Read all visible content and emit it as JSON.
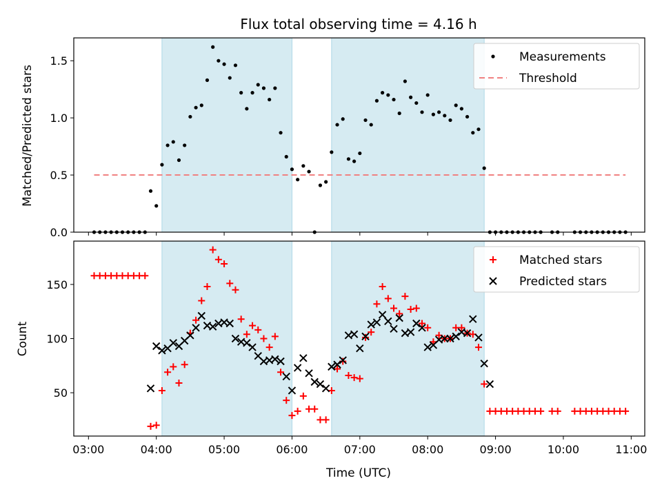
{
  "chart_data": [
    {
      "type": "scatter",
      "title": "Flux total observing time = 4.16 h",
      "xlabel": "",
      "ylabel": "Matched/Predicted stars",
      "xlim": [
        "02:47",
        "11:12"
      ],
      "ylim": [
        0,
        1.7
      ],
      "yticks": [
        0.0,
        0.5,
        1.0,
        1.5
      ],
      "ytick_labels": [
        "0.0",
        "0.5",
        "1.0",
        "1.5"
      ],
      "legend": "top-right",
      "shaded_intervals": [
        [
          "04:05",
          "06:00"
        ],
        [
          "06:35",
          "08:50"
        ]
      ],
      "series": [
        {
          "name": "Measurements",
          "marker": "dot",
          "color": "#000000",
          "points": [
            [
              "03:05",
              0
            ],
            [
              "03:10",
              0
            ],
            [
              "03:15",
              0
            ],
            [
              "03:20",
              0
            ],
            [
              "03:25",
              0
            ],
            [
              "03:30",
              0
            ],
            [
              "03:35",
              0
            ],
            [
              "03:40",
              0
            ],
            [
              "03:45",
              0
            ],
            [
              "03:50",
              0
            ],
            [
              "03:55",
              0.36
            ],
            [
              "04:00",
              0.23
            ],
            [
              "04:05",
              0.59
            ],
            [
              "04:10",
              0.76
            ],
            [
              "04:15",
              0.79
            ],
            [
              "04:20",
              0.63
            ],
            [
              "04:25",
              0.76
            ],
            [
              "04:30",
              1.01
            ],
            [
              "04:35",
              1.09
            ],
            [
              "04:40",
              1.11
            ],
            [
              "04:45",
              1.33
            ],
            [
              "04:50",
              1.62
            ],
            [
              "04:55",
              1.5
            ],
            [
              "05:00",
              1.47
            ],
            [
              "05:05",
              1.35
            ],
            [
              "05:10",
              1.46
            ],
            [
              "05:15",
              1.22
            ],
            [
              "05:20",
              1.08
            ],
            [
              "05:25",
              1.22
            ],
            [
              "05:30",
              1.29
            ],
            [
              "05:35",
              1.26
            ],
            [
              "05:40",
              1.16
            ],
            [
              "05:45",
              1.26
            ],
            [
              "05:50",
              0.87
            ],
            [
              "05:55",
              0.66
            ],
            [
              "06:00",
              0.55
            ],
            [
              "06:05",
              0.46
            ],
            [
              "06:10",
              0.58
            ],
            [
              "06:15",
              0.53
            ],
            [
              "06:20",
              0
            ],
            [
              "06:25",
              0.41
            ],
            [
              "06:30",
              0.44
            ],
            [
              "06:35",
              0.7
            ],
            [
              "06:40",
              0.94
            ],
            [
              "06:45",
              0.99
            ],
            [
              "06:50",
              0.64
            ],
            [
              "06:55",
              0.62
            ],
            [
              "07:00",
              0.69
            ],
            [
              "07:05",
              0.98
            ],
            [
              "07:10",
              0.94
            ],
            [
              "07:15",
              1.15
            ],
            [
              "07:20",
              1.22
            ],
            [
              "07:25",
              1.2
            ],
            [
              "07:30",
              1.16
            ],
            [
              "07:35",
              1.04
            ],
            [
              "07:40",
              1.32
            ],
            [
              "07:45",
              1.18
            ],
            [
              "07:50",
              1.13
            ],
            [
              "07:55",
              1.05
            ],
            [
              "08:00",
              1.2
            ],
            [
              "08:05",
              1.03
            ],
            [
              "08:10",
              1.05
            ],
            [
              "08:15",
              1.02
            ],
            [
              "08:20",
              0.98
            ],
            [
              "08:25",
              1.11
            ],
            [
              "08:30",
              1.08
            ],
            [
              "08:35",
              1.01
            ],
            [
              "08:40",
              0.87
            ],
            [
              "08:45",
              0.9
            ],
            [
              "08:50",
              0.56
            ],
            [
              "08:55",
              0
            ],
            [
              "09:00",
              0
            ],
            [
              "09:05",
              0
            ],
            [
              "09:10",
              0
            ],
            [
              "09:15",
              0
            ],
            [
              "09:20",
              0
            ],
            [
              "09:25",
              0
            ],
            [
              "09:30",
              0
            ],
            [
              "09:35",
              0
            ],
            [
              "09:40",
              0
            ],
            [
              "09:50",
              0
            ],
            [
              "09:55",
              0
            ],
            [
              "10:10",
              0
            ],
            [
              "10:15",
              0
            ],
            [
              "10:20",
              0
            ],
            [
              "10:25",
              0
            ],
            [
              "10:30",
              0
            ],
            [
              "10:35",
              0
            ],
            [
              "10:40",
              0
            ],
            [
              "10:45",
              0
            ],
            [
              "10:50",
              0
            ],
            [
              "10:55",
              0
            ]
          ]
        },
        {
          "name": "Threshold",
          "marker": "dashed-line",
          "color": "#f08080",
          "points": [
            [
              "03:05",
              0.5
            ],
            [
              "10:55",
              0.5
            ]
          ]
        }
      ]
    },
    {
      "type": "scatter",
      "title": "",
      "xlabel": "Time (UTC)",
      "ylabel": "Count",
      "xlim": [
        "02:47",
        "11:12"
      ],
      "ylim": [
        10,
        190
      ],
      "yticks": [
        50,
        100,
        150
      ],
      "ytick_labels": [
        "50",
        "100",
        "150"
      ],
      "xticks": [
        "03:00",
        "04:00",
        "05:00",
        "06:00",
        "07:00",
        "08:00",
        "09:00",
        "10:00",
        "11:00"
      ],
      "legend": "top-right",
      "shaded_intervals": [
        [
          "04:05",
          "06:00"
        ],
        [
          "06:35",
          "08:50"
        ]
      ],
      "series": [
        {
          "name": "Matched stars",
          "marker": "plus",
          "color": "#ff0000",
          "points": [
            [
              "03:05",
              158
            ],
            [
              "03:10",
              158
            ],
            [
              "03:15",
              158
            ],
            [
              "03:20",
              158
            ],
            [
              "03:25",
              158
            ],
            [
              "03:30",
              158
            ],
            [
              "03:35",
              158
            ],
            [
              "03:40",
              158
            ],
            [
              "03:45",
              158
            ],
            [
              "03:50",
              158
            ],
            [
              "03:55",
              19
            ],
            [
              "04:00",
              20
            ],
            [
              "04:05",
              52
            ],
            [
              "04:10",
              69
            ],
            [
              "04:15",
              74
            ],
            [
              "04:20",
              59
            ],
            [
              "04:25",
              76
            ],
            [
              "04:30",
              105
            ],
            [
              "04:35",
              117
            ],
            [
              "04:40",
              135
            ],
            [
              "04:45",
              148
            ],
            [
              "04:50",
              182
            ],
            [
              "04:55",
              173
            ],
            [
              "05:00",
              169
            ],
            [
              "05:05",
              151
            ],
            [
              "05:10",
              145
            ],
            [
              "05:15",
              118
            ],
            [
              "05:20",
              104
            ],
            [
              "05:25",
              112
            ],
            [
              "05:30",
              108
            ],
            [
              "05:35",
              100
            ],
            [
              "05:40",
              92
            ],
            [
              "05:45",
              102
            ],
            [
              "05:50",
              69
            ],
            [
              "05:55",
              43
            ],
            [
              "06:00",
              29
            ],
            [
              "06:05",
              33
            ],
            [
              "06:10",
              47
            ],
            [
              "06:15",
              35
            ],
            [
              "06:20",
              35
            ],
            [
              "06:25",
              25
            ],
            [
              "06:30",
              25
            ],
            [
              "06:35",
              52
            ],
            [
              "06:40",
              72
            ],
            [
              "06:45",
              79
            ],
            [
              "06:50",
              66
            ],
            [
              "06:55",
              64
            ],
            [
              "07:00",
              63
            ],
            [
              "07:05",
              101
            ],
            [
              "07:10",
              106
            ],
            [
              "07:15",
              132
            ],
            [
              "07:20",
              148
            ],
            [
              "07:25",
              137
            ],
            [
              "07:30",
              128
            ],
            [
              "07:35",
              123
            ],
            [
              "07:40",
              139
            ],
            [
              "07:45",
              127
            ],
            [
              "07:50",
              128
            ],
            [
              "07:55",
              114
            ],
            [
              "08:00",
              110
            ],
            [
              "08:05",
              97
            ],
            [
              "08:10",
              103
            ],
            [
              "08:15",
              100
            ],
            [
              "08:20",
              100
            ],
            [
              "08:25",
              110
            ],
            [
              "08:30",
              110
            ],
            [
              "08:35",
              105
            ],
            [
              "08:40",
              104
            ],
            [
              "08:45",
              92
            ],
            [
              "08:50",
              58
            ],
            [
              "08:55",
              33
            ],
            [
              "09:00",
              33
            ],
            [
              "09:05",
              33
            ],
            [
              "09:10",
              33
            ],
            [
              "09:15",
              33
            ],
            [
              "09:20",
              33
            ],
            [
              "09:25",
              33
            ],
            [
              "09:30",
              33
            ],
            [
              "09:35",
              33
            ],
            [
              "09:40",
              33
            ],
            [
              "09:50",
              33
            ],
            [
              "09:55",
              33
            ],
            [
              "10:10",
              33
            ],
            [
              "10:15",
              33
            ],
            [
              "10:20",
              33
            ],
            [
              "10:25",
              33
            ],
            [
              "10:30",
              33
            ],
            [
              "10:35",
              33
            ],
            [
              "10:40",
              33
            ],
            [
              "10:45",
              33
            ],
            [
              "10:50",
              33
            ],
            [
              "10:55",
              33
            ]
          ]
        },
        {
          "name": "Predicted stars",
          "marker": "x",
          "color": "#000000",
          "points": [
            [
              "03:55",
              54
            ],
            [
              "04:00",
              93
            ],
            [
              "04:05",
              89
            ],
            [
              "04:10",
              91
            ],
            [
              "04:15",
              96
            ],
            [
              "04:20",
              93
            ],
            [
              "04:25",
              98
            ],
            [
              "04:30",
              103
            ],
            [
              "04:35",
              110
            ],
            [
              "04:40",
              121
            ],
            [
              "04:45",
              112
            ],
            [
              "04:50",
              111
            ],
            [
              "04:55",
              114
            ],
            [
              "05:00",
              115
            ],
            [
              "05:05",
              114
            ],
            [
              "05:10",
              100
            ],
            [
              "05:15",
              97
            ],
            [
              "05:20",
              96
            ],
            [
              "05:25",
              92
            ],
            [
              "05:30",
              84
            ],
            [
              "05:35",
              79
            ],
            [
              "05:40",
              80
            ],
            [
              "05:45",
              81
            ],
            [
              "05:50",
              79
            ],
            [
              "05:55",
              65
            ],
            [
              "06:00",
              52
            ],
            [
              "06:05",
              73
            ],
            [
              "06:10",
              82
            ],
            [
              "06:15",
              68
            ],
            [
              "06:20",
              60
            ],
            [
              "06:25",
              58
            ],
            [
              "06:30",
              54
            ],
            [
              "06:35",
              74
            ],
            [
              "06:40",
              76
            ],
            [
              "06:45",
              80
            ],
            [
              "06:50",
              103
            ],
            [
              "06:55",
              104
            ],
            [
              "07:00",
              91
            ],
            [
              "07:05",
              102
            ],
            [
              "07:10",
              113
            ],
            [
              "07:15",
              115
            ],
            [
              "07:20",
              122
            ],
            [
              "07:25",
              116
            ],
            [
              "07:30",
              109
            ],
            [
              "07:35",
              119
            ],
            [
              "07:40",
              105
            ],
            [
              "07:45",
              106
            ],
            [
              "07:50",
              114
            ],
            [
              "07:55",
              110
            ],
            [
              "08:00",
              92
            ],
            [
              "08:05",
              94
            ],
            [
              "08:10",
              99
            ],
            [
              "08:15",
              100
            ],
            [
              "08:20",
              100
            ],
            [
              "08:25",
              102
            ],
            [
              "08:30",
              106
            ],
            [
              "08:35",
              105
            ],
            [
              "08:40",
              118
            ],
            [
              "08:45",
              101
            ],
            [
              "08:50",
              77
            ],
            [
              "08:55",
              58
            ]
          ]
        }
      ]
    }
  ]
}
